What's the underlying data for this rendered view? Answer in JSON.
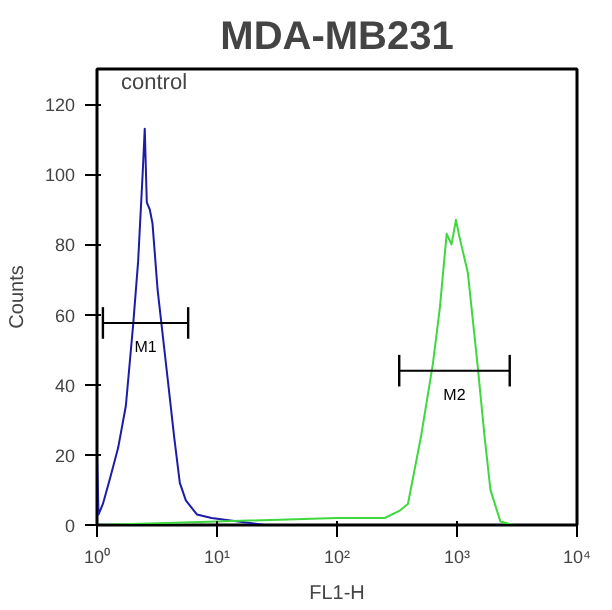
{
  "chart_data": {
    "type": "line",
    "title": "MDA-MB231",
    "xlabel": "FL1-H",
    "ylabel": "Counts",
    "log": "x",
    "grid": false,
    "marker": "none",
    "line_style": "solid",
    "xlim": [
      1,
      10000
    ],
    "ylim": [
      0,
      130
    ],
    "xticks": [
      {
        "value": 1,
        "label": "10⁰"
      },
      {
        "value": 10,
        "label": "10¹"
      },
      {
        "value": 100,
        "label": "10²"
      },
      {
        "value": 1000,
        "label": "10³"
      },
      {
        "value": 10000,
        "label": "10⁴"
      }
    ],
    "yticks": [
      0,
      20,
      40,
      60,
      80,
      100,
      120
    ],
    "series": [
      {
        "color": "#1c1ca8",
        "x": [
          1.0,
          1.03,
          1.12,
          1.3,
          1.5,
          1.74,
          2.0,
          2.2,
          2.4,
          2.5,
          2.6,
          2.75,
          2.9,
          3.2,
          3.9,
          4.4,
          4.9,
          5.5,
          6.8,
          9,
          15,
          25,
          100,
          10000
        ],
        "values": [
          20,
          3,
          6,
          14,
          22,
          34,
          57,
          75,
          100,
          113,
          92,
          90,
          86,
          67,
          41,
          25,
          12,
          7,
          3,
          2,
          1,
          0,
          0,
          0
        ]
      },
      {
        "color": "#3ed83e",
        "x": [
          1,
          10,
          100,
          250,
          330,
          390,
          500,
          630,
          720,
          820,
          900,
          980,
          1050,
          1230,
          1480,
          1700,
          1900,
          2300,
          3000,
          10000
        ],
        "values": [
          0,
          1,
          2,
          2,
          4,
          6,
          25,
          46,
          62,
          83,
          80,
          87,
          82,
          72,
          46,
          25,
          10,
          1,
          0,
          0
        ]
      },
      {
        "name": "M1",
        "color": "#000000",
        "x": [
          1.12,
          5.75
        ],
        "values": [
          57.6,
          57.6
        ],
        "errors": [
          4.5,
          4.5
        ]
      },
      {
        "name": "M2",
        "color": "#000000",
        "x": [
          330,
          2750
        ],
        "values": [
          44,
          44
        ],
        "errors": [
          4.5,
          4.5
        ]
      }
    ],
    "annotations": [
      "control"
    ]
  }
}
